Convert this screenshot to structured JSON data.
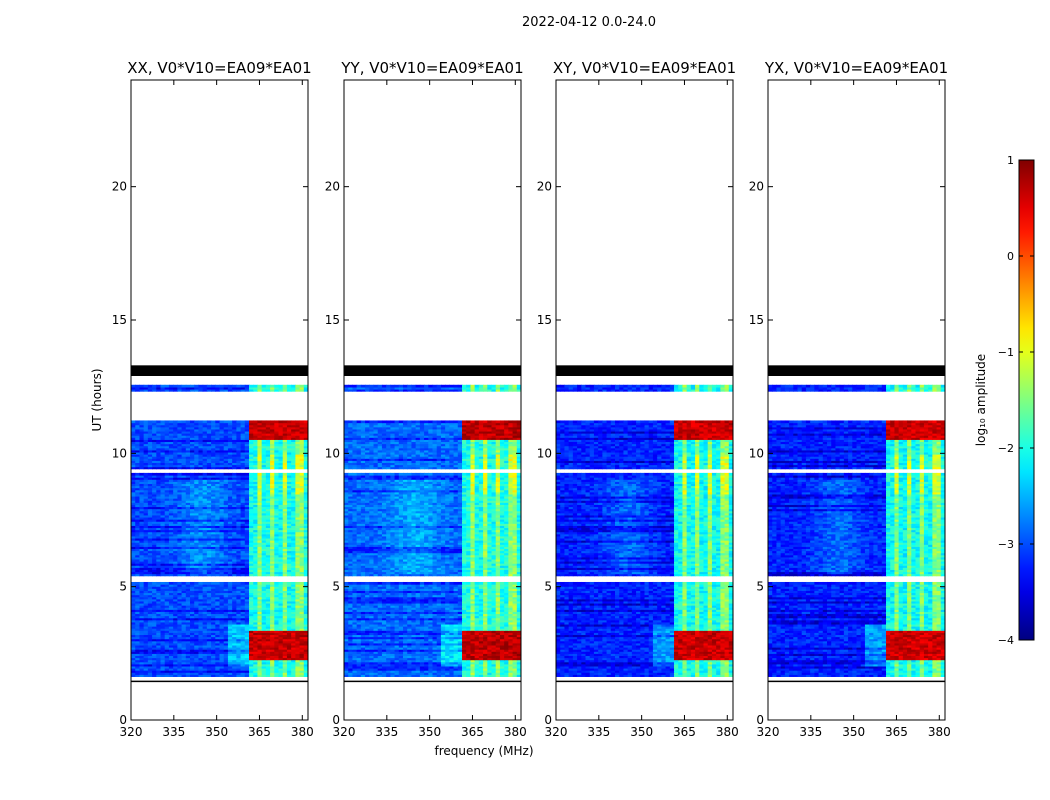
{
  "chart_data": {
    "type": "heatmap",
    "suptitle": "2022-04-12 0.0-24.0",
    "xlabel": "frequency (MHz)",
    "ylabel": "UT (hours)",
    "xlim": [
      320,
      382
    ],
    "ylim": [
      0,
      24
    ],
    "xticks": [
      320,
      335,
      350,
      365,
      380
    ],
    "yticks": [
      0,
      5,
      10,
      15,
      20
    ],
    "colorbar": {
      "label": "log₁₀ amplitude",
      "vmin": -4,
      "vmax": 1,
      "ticks": [
        1,
        0,
        -1,
        -2,
        -3,
        -4
      ],
      "colormap": "jet"
    },
    "panels": [
      {
        "title": "XX, V0*V10=EA09*EA01",
        "bg_level": -3.0,
        "band_strength": 1.0
      },
      {
        "title": "YY, V0*V10=EA09*EA01",
        "bg_level": -2.85,
        "band_strength": 1.15
      },
      {
        "title": "XY, V0*V10=EA09*EA01",
        "bg_level": -3.2,
        "band_strength": 0.95
      },
      {
        "title": "YX, V0*V10=EA09*EA01",
        "bg_level": -3.2,
        "band_strength": 0.9
      }
    ],
    "data_time_range_hours": [
      1.4,
      13.2
    ],
    "flagged_block_hours": [
      12.9,
      13.3
    ],
    "gap_hours": [
      [
        12.0,
        12.3
      ],
      [
        11.2,
        12.0
      ],
      [
        5.15,
        5.4
      ],
      [
        9.3,
        9.45
      ],
      [
        1.4,
        1.6
      ]
    ],
    "rfi_channels_mhz": [
      363,
      367,
      372,
      376,
      381
    ],
    "strong_rfi_hours": [
      [
        2.3,
        3.4
      ],
      [
        10.5,
        11.2
      ]
    ]
  }
}
